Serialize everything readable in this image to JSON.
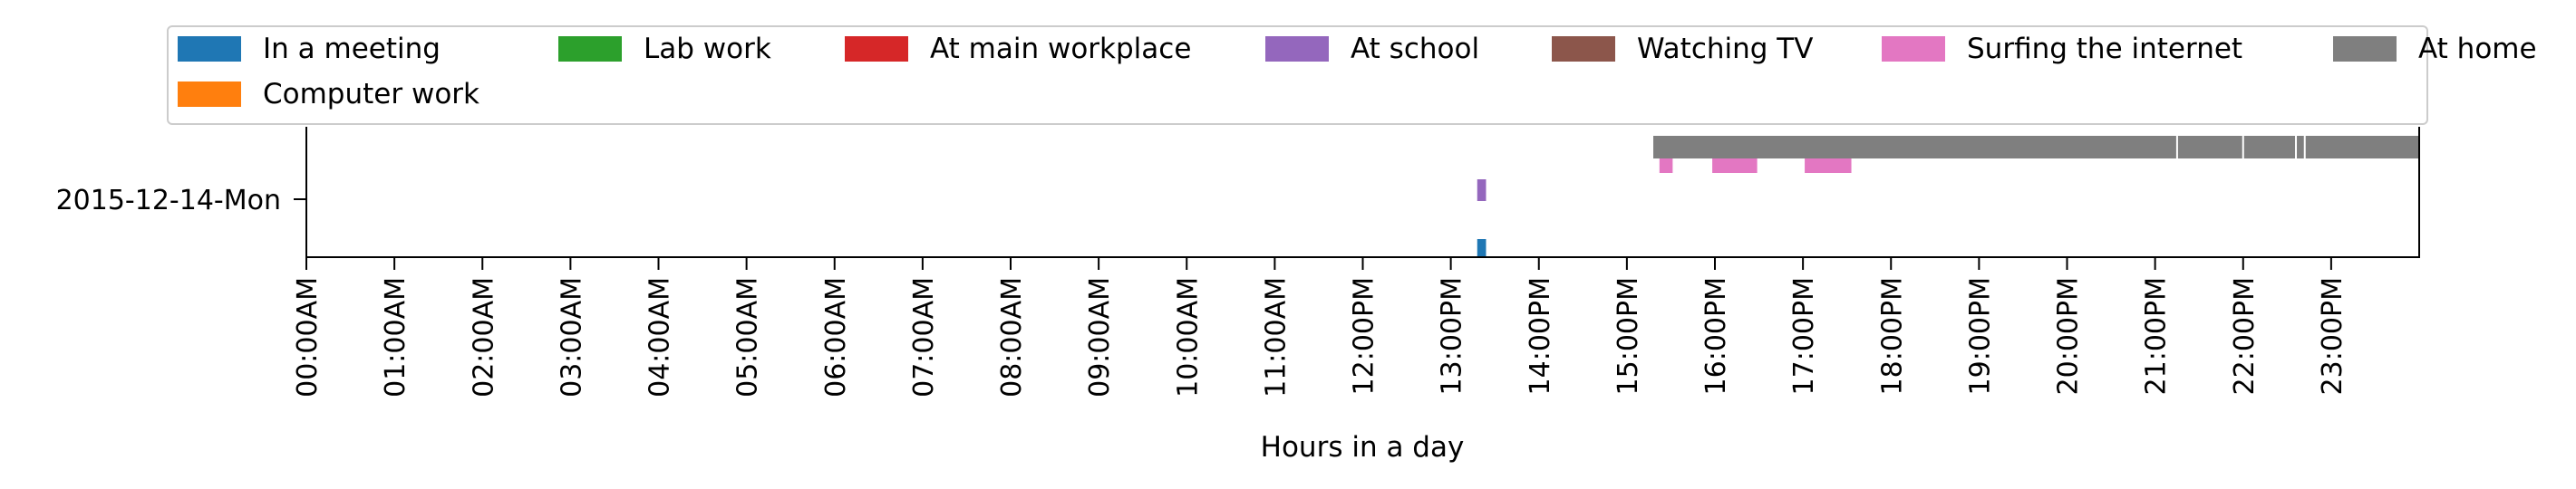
{
  "chart_data": {
    "type": "timeline",
    "xlabel": "Hours in a day",
    "ylabel": "",
    "xlim": [
      0,
      24
    ],
    "row_label": "2015-12-14-Mon",
    "x_ticks": [
      "00:00AM",
      "01:00AM",
      "02:00AM",
      "03:00AM",
      "04:00AM",
      "05:00AM",
      "06:00AM",
      "07:00AM",
      "08:00AM",
      "09:00AM",
      "10:00AM",
      "11:00AM",
      "12:00PM",
      "13:00PM",
      "14:00PM",
      "15:00PM",
      "16:00PM",
      "17:00PM",
      "18:00PM",
      "19:00PM",
      "20:00PM",
      "21:00PM",
      "22:00PM",
      "23:00PM"
    ],
    "legend": [
      {
        "label": "In a meeting",
        "color": "#1f77b4"
      },
      {
        "label": "Lab work",
        "color": "#2ca02c"
      },
      {
        "label": "At main workplace",
        "color": "#d62728"
      },
      {
        "label": "At school",
        "color": "#9467bd"
      },
      {
        "label": "Watching TV",
        "color": "#8c564b"
      },
      {
        "label": "Surfing the internet",
        "color": "#e377c2"
      },
      {
        "label": "At home",
        "color": "#7f7f7f"
      },
      {
        "label": "Computer work",
        "color": "#ff7f0e"
      }
    ],
    "series": [
      {
        "name": "In a meeting",
        "color": "#1f77b4",
        "lane": 0,
        "intervals": [
          [
            13.3,
            13.4
          ]
        ]
      },
      {
        "name": "At school",
        "color": "#9467bd",
        "lane": 1,
        "intervals": [
          [
            13.3,
            13.4
          ]
        ]
      },
      {
        "name": "Surfing the internet",
        "color": "#e377c2",
        "lane": 2,
        "intervals": [
          [
            15.37,
            15.52
          ],
          [
            15.97,
            16.48
          ],
          [
            17.02,
            17.55
          ]
        ]
      },
      {
        "name": "At home",
        "color": "#7f7f7f",
        "lane": 3,
        "intervals": [
          [
            15.3,
            24.0
          ]
        ]
      }
    ]
  }
}
